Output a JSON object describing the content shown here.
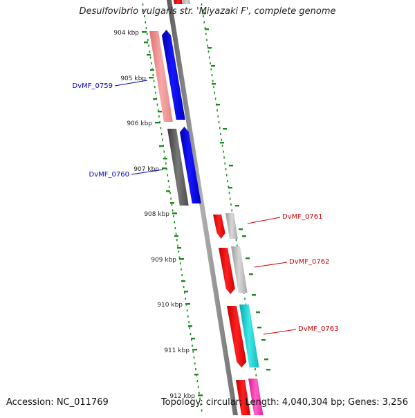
{
  "title": "Desulfovibrio vulgaris str. 'Miyazaki F', complete genome",
  "footer": {
    "accession": "Accession: NC_011769",
    "summary": "Topology: circular; Length: 4,040,304 bp; Genes: 3,256"
  },
  "colors": {
    "background": "#ffffff",
    "backbone": "#8a8a8a",
    "tick": "#1a8a1a",
    "tick_label": "#222222",
    "label_forward": "#0000cc",
    "label_reverse": "#cc0000",
    "blue": "#0a0af0",
    "pink": "#f08a8a",
    "gray_dark": "#5a5a5a",
    "red": "#ee0000",
    "gray_light": "#b8b8b8",
    "cyan": "#18c8c8",
    "magenta": "#ff30b0"
  },
  "scale": {
    "ticks": [
      "904 kbp",
      "905 kbp",
      "906 kbp",
      "907 kbp",
      "908 kbp",
      "909 kbp",
      "910 kbp",
      "911 kbp",
      "912 kbp"
    ]
  },
  "genes": [
    {
      "label": "DvMF_0759",
      "strand": "forward"
    },
    {
      "label": "DvMF_0760",
      "strand": "forward"
    },
    {
      "label": "DvMF_0761",
      "strand": "reverse"
    },
    {
      "label": "DvMF_0762",
      "strand": "reverse"
    },
    {
      "label": "DvMF_0763",
      "strand": "reverse"
    }
  ]
}
